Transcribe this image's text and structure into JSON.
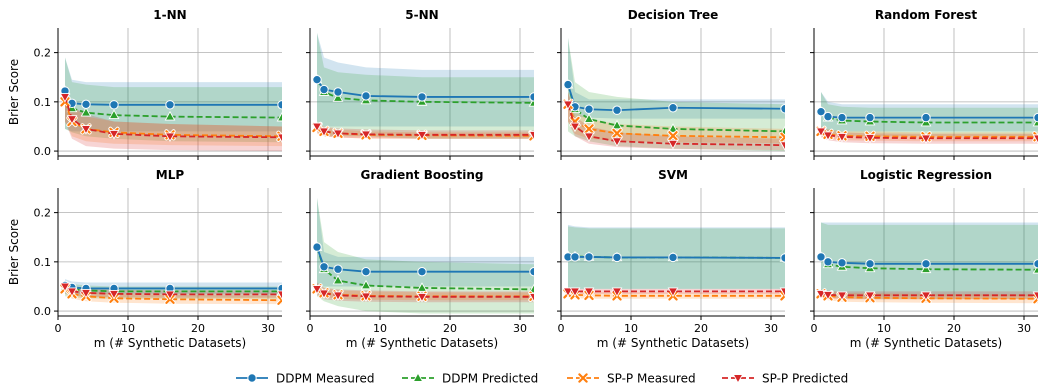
{
  "chart_data": [
    {
      "type": "line",
      "title": "1-NN",
      "ylabel": "Brier Score",
      "xlabel": "",
      "ylim": [
        -0.01,
        0.25
      ],
      "xlim": [
        0,
        32
      ],
      "x": [
        1,
        2,
        4,
        8,
        16,
        32
      ],
      "series": [
        {
          "name": "DDPM Measured",
          "values": [
            0.122,
            0.097,
            0.095,
            0.094,
            0.094,
            0.094
          ],
          "lower": [
            0.045,
            0.04,
            0.04,
            0.04,
            0.04,
            0.04
          ],
          "upper": [
            0.19,
            0.145,
            0.14,
            0.14,
            0.14,
            0.14
          ]
        },
        {
          "name": "DDPM Predicted",
          "values": [
            0.122,
            0.087,
            0.078,
            0.073,
            0.07,
            0.068
          ],
          "lower": [
            0.045,
            0.038,
            0.03,
            0.025,
            0.02,
            0.018
          ],
          "upper": [
            0.19,
            0.14,
            0.135,
            0.13,
            0.13,
            0.13
          ]
        },
        {
          "name": "SP-P Measured",
          "values": [
            0.1,
            0.06,
            0.045,
            0.038,
            0.033,
            0.03
          ],
          "lower": [
            0.06,
            0.03,
            0.02,
            0.015,
            0.012,
            0.01
          ],
          "upper": [
            0.13,
            0.09,
            0.07,
            0.06,
            0.055,
            0.05
          ]
        },
        {
          "name": "SP-P Predicted",
          "values": [
            0.11,
            0.065,
            0.045,
            0.035,
            0.03,
            0.028
          ],
          "lower": [
            0.06,
            0.025,
            0.01,
            0.005,
            0.002,
            0.0
          ],
          "upper": [
            0.13,
            0.09,
            0.075,
            0.06,
            0.055,
            0.05
          ]
        }
      ]
    },
    {
      "type": "line",
      "title": "5-NN",
      "ylabel": "",
      "xlabel": "",
      "ylim": [
        -0.01,
        0.25
      ],
      "xlim": [
        0,
        32
      ],
      "x": [
        1,
        2,
        4,
        8,
        16,
        32
      ],
      "series": [
        {
          "name": "DDPM Measured",
          "values": [
            0.145,
            0.125,
            0.12,
            0.112,
            0.11,
            0.11
          ],
          "lower": [
            0.06,
            0.05,
            0.05,
            0.05,
            0.05,
            0.05
          ],
          "upper": [
            0.24,
            0.19,
            0.18,
            0.17,
            0.165,
            0.165
          ]
        },
        {
          "name": "DDPM Predicted",
          "values": [
            0.145,
            0.12,
            0.108,
            0.103,
            0.1,
            0.098
          ],
          "lower": [
            0.04,
            0.03,
            0.03,
            0.03,
            0.025,
            0.025
          ],
          "upper": [
            0.24,
            0.17,
            0.16,
            0.155,
            0.15,
            0.15
          ]
        },
        {
          "name": "SP-P Measured",
          "values": [
            0.048,
            0.04,
            0.036,
            0.033,
            0.032,
            0.031
          ],
          "lower": [
            0.035,
            0.03,
            0.028,
            0.025,
            0.025,
            0.025
          ],
          "upper": [
            0.055,
            0.048,
            0.044,
            0.04,
            0.038,
            0.038
          ]
        },
        {
          "name": "SP-P Predicted",
          "values": [
            0.05,
            0.04,
            0.036,
            0.034,
            0.033,
            0.033
          ],
          "lower": [
            0.038,
            0.03,
            0.027,
            0.026,
            0.025,
            0.025
          ],
          "upper": [
            0.058,
            0.05,
            0.046,
            0.044,
            0.042,
            0.042
          ]
        }
      ]
    },
    {
      "type": "line",
      "title": "Decision Tree",
      "ylabel": "",
      "xlabel": "",
      "ylim": [
        -0.01,
        0.25
      ],
      "xlim": [
        0,
        32
      ],
      "x": [
        1,
        2,
        4,
        8,
        16,
        32
      ],
      "series": [
        {
          "name": "DDPM Measured",
          "values": [
            0.135,
            0.09,
            0.085,
            0.083,
            0.088,
            0.086
          ],
          "lower": [
            0.085,
            0.07,
            0.068,
            0.066,
            0.066,
            0.066
          ],
          "upper": [
            0.23,
            0.12,
            0.105,
            0.105,
            0.105,
            0.105
          ]
        },
        {
          "name": "DDPM Predicted",
          "values": [
            0.135,
            0.085,
            0.065,
            0.052,
            0.045,
            0.04
          ],
          "lower": [
            0.04,
            0.03,
            0.02,
            0.01,
            0.005,
            0.0
          ],
          "upper": [
            0.23,
            0.14,
            0.12,
            0.11,
            0.1,
            0.095
          ]
        },
        {
          "name": "SP-P Measured",
          "values": [
            0.095,
            0.06,
            0.045,
            0.036,
            0.031,
            0.028
          ],
          "lower": [
            0.06,
            0.035,
            0.025,
            0.02,
            0.018,
            0.016
          ],
          "upper": [
            0.12,
            0.08,
            0.065,
            0.055,
            0.05,
            0.045
          ]
        },
        {
          "name": "SP-P Predicted",
          "values": [
            0.095,
            0.05,
            0.03,
            0.02,
            0.015,
            0.012
          ],
          "lower": [
            0.06,
            0.03,
            0.015,
            0.008,
            0.004,
            0.002
          ],
          "upper": [
            0.12,
            0.07,
            0.05,
            0.038,
            0.03,
            0.025
          ]
        }
      ]
    },
    {
      "type": "line",
      "title": "Random Forest",
      "ylabel": "",
      "xlabel": "",
      "ylim": [
        -0.01,
        0.25
      ],
      "xlim": [
        0,
        32
      ],
      "x": [
        1,
        2,
        4,
        8,
        16,
        32
      ],
      "series": [
        {
          "name": "DDPM Measured",
          "values": [
            0.08,
            0.07,
            0.068,
            0.068,
            0.068,
            0.068
          ],
          "lower": [
            0.045,
            0.04,
            0.04,
            0.04,
            0.04,
            0.04
          ],
          "upper": [
            0.12,
            0.1,
            0.095,
            0.095,
            0.095,
            0.095
          ]
        },
        {
          "name": "DDPM Predicted",
          "values": [
            0.08,
            0.068,
            0.062,
            0.06,
            0.058,
            0.058
          ],
          "lower": [
            0.045,
            0.035,
            0.032,
            0.03,
            0.03,
            0.03
          ],
          "upper": [
            0.12,
            0.095,
            0.09,
            0.088,
            0.088,
            0.088
          ]
        },
        {
          "name": "SP-P Measured",
          "values": [
            0.04,
            0.034,
            0.031,
            0.03,
            0.029,
            0.029
          ],
          "lower": [
            0.03,
            0.025,
            0.022,
            0.021,
            0.02,
            0.02
          ],
          "upper": [
            0.05,
            0.045,
            0.04,
            0.04,
            0.038,
            0.038
          ]
        },
        {
          "name": "SP-P Predicted",
          "values": [
            0.04,
            0.032,
            0.029,
            0.027,
            0.026,
            0.026
          ],
          "lower": [
            0.028,
            0.022,
            0.018,
            0.016,
            0.015,
            0.015
          ],
          "upper": [
            0.05,
            0.042,
            0.038,
            0.036,
            0.035,
            0.035
          ]
        }
      ]
    },
    {
      "type": "line",
      "title": "MLP",
      "ylabel": "Brier Score",
      "xlabel": "m (# Synthetic Datasets)",
      "ylim": [
        -0.01,
        0.25
      ],
      "xlim": [
        0,
        32
      ],
      "x": [
        1,
        2,
        4,
        8,
        16,
        32
      ],
      "series": [
        {
          "name": "DDPM Measured",
          "values": [
            0.052,
            0.048,
            0.046,
            0.046,
            0.046,
            0.046
          ],
          "lower": [
            0.035,
            0.035,
            0.035,
            0.035,
            0.035,
            0.035
          ],
          "upper": [
            0.065,
            0.06,
            0.058,
            0.058,
            0.058,
            0.058
          ]
        },
        {
          "name": "DDPM Predicted",
          "values": [
            0.05,
            0.045,
            0.042,
            0.04,
            0.04,
            0.04
          ],
          "lower": [
            0.03,
            0.028,
            0.026,
            0.025,
            0.025,
            0.025
          ],
          "upper": [
            0.06,
            0.055,
            0.052,
            0.05,
            0.05,
            0.05
          ]
        },
        {
          "name": "SP-P Measured",
          "values": [
            0.045,
            0.035,
            0.03,
            0.026,
            0.024,
            0.022
          ],
          "lower": [
            0.035,
            0.025,
            0.02,
            0.017,
            0.015,
            0.014
          ],
          "upper": [
            0.055,
            0.045,
            0.04,
            0.035,
            0.033,
            0.031
          ]
        },
        {
          "name": "SP-P Predicted",
          "values": [
            0.05,
            0.04,
            0.037,
            0.035,
            0.034,
            0.034
          ],
          "lower": [
            0.04,
            0.032,
            0.029,
            0.028,
            0.027,
            0.027
          ],
          "upper": [
            0.06,
            0.048,
            0.045,
            0.043,
            0.042,
            0.042
          ]
        }
      ]
    },
    {
      "type": "line",
      "title": "Gradient Boosting",
      "ylabel": "",
      "xlabel": "m (# Synthetic Datasets)",
      "ylim": [
        -0.01,
        0.25
      ],
      "xlim": [
        0,
        32
      ],
      "x": [
        1,
        2,
        4,
        8,
        16,
        32
      ],
      "series": [
        {
          "name": "DDPM Measured",
          "values": [
            0.13,
            0.09,
            0.085,
            0.08,
            0.08,
            0.08
          ],
          "lower": [
            0.05,
            0.05,
            0.05,
            0.05,
            0.05,
            0.05
          ],
          "upper": [
            0.23,
            0.12,
            0.11,
            0.11,
            0.11,
            0.11
          ]
        },
        {
          "name": "DDPM Predicted",
          "values": [
            0.13,
            0.085,
            0.062,
            0.052,
            0.047,
            0.044
          ],
          "lower": [
            0.03,
            0.02,
            0.01,
            0.0,
            -0.005,
            -0.005
          ],
          "upper": [
            0.23,
            0.14,
            0.12,
            0.105,
            0.1,
            0.095
          ]
        },
        {
          "name": "SP-P Measured",
          "values": [
            0.045,
            0.037,
            0.033,
            0.031,
            0.03,
            0.03
          ],
          "lower": [
            0.035,
            0.028,
            0.025,
            0.023,
            0.022,
            0.022
          ],
          "upper": [
            0.055,
            0.046,
            0.042,
            0.04,
            0.038,
            0.038
          ]
        },
        {
          "name": "SP-P Predicted",
          "values": [
            0.045,
            0.036,
            0.032,
            0.03,
            0.029,
            0.029
          ],
          "lower": [
            0.032,
            0.024,
            0.021,
            0.019,
            0.018,
            0.018
          ],
          "upper": [
            0.058,
            0.048,
            0.044,
            0.042,
            0.04,
            0.04
          ]
        }
      ]
    },
    {
      "type": "line",
      "title": "SVM",
      "ylabel": "",
      "xlabel": "m (# Synthetic Datasets)",
      "ylim": [
        -0.01,
        0.25
      ],
      "xlim": [
        0,
        32
      ],
      "x": [
        1,
        2,
        4,
        8,
        16,
        32
      ],
      "series": [
        {
          "name": "DDPM Measured",
          "values": [
            0.11,
            0.11,
            0.11,
            0.109,
            0.109,
            0.108
          ],
          "lower": [
            0.045,
            0.045,
            0.045,
            0.045,
            0.045,
            0.045
          ],
          "upper": [
            0.175,
            0.172,
            0.17,
            0.17,
            0.17,
            0.17
          ]
        },
        {
          "name": "DDPM Predicted",
          "values": [
            0.112,
            0.111,
            0.11,
            0.109,
            0.109,
            0.108
          ],
          "lower": [
            0.045,
            0.045,
            0.045,
            0.045,
            0.045,
            0.045
          ],
          "upper": [
            0.172,
            0.17,
            0.168,
            0.168,
            0.168,
            0.168
          ]
        },
        {
          "name": "SP-P Measured",
          "values": [
            0.035,
            0.033,
            0.032,
            0.031,
            0.031,
            0.031
          ],
          "lower": [
            0.028,
            0.026,
            0.025,
            0.025,
            0.025,
            0.025
          ],
          "upper": [
            0.042,
            0.04,
            0.039,
            0.038,
            0.038,
            0.038
          ]
        },
        {
          "name": "SP-P Predicted",
          "values": [
            0.04,
            0.04,
            0.04,
            0.04,
            0.04,
            0.04
          ],
          "lower": [
            0.035,
            0.035,
            0.035,
            0.035,
            0.035,
            0.035
          ],
          "upper": [
            0.045,
            0.045,
            0.045,
            0.045,
            0.045,
            0.045
          ]
        }
      ]
    },
    {
      "type": "line",
      "title": "Logistic Regression",
      "ylabel": "",
      "xlabel": "m (# Synthetic Datasets)",
      "ylim": [
        -0.01,
        0.25
      ],
      "xlim": [
        0,
        32
      ],
      "x": [
        1,
        2,
        4,
        8,
        16,
        32
      ],
      "series": [
        {
          "name": "DDPM Measured",
          "values": [
            0.11,
            0.1,
            0.098,
            0.096,
            0.096,
            0.096
          ],
          "lower": [
            0.03,
            0.03,
            0.03,
            0.03,
            0.03,
            0.03
          ],
          "upper": [
            0.18,
            0.18,
            0.18,
            0.18,
            0.18,
            0.18
          ]
        },
        {
          "name": "DDPM Predicted",
          "values": [
            0.11,
            0.095,
            0.09,
            0.087,
            0.085,
            0.084
          ],
          "lower": [
            0.03,
            0.028,
            0.026,
            0.024,
            0.024,
            0.024
          ],
          "upper": [
            0.18,
            0.175,
            0.175,
            0.175,
            0.175,
            0.175
          ]
        },
        {
          "name": "SP-P Measured",
          "values": [
            0.035,
            0.031,
            0.028,
            0.027,
            0.026,
            0.025
          ],
          "lower": [
            0.026,
            0.022,
            0.019,
            0.018,
            0.017,
            0.016
          ],
          "upper": [
            0.044,
            0.04,
            0.037,
            0.036,
            0.035,
            0.034
          ]
        },
        {
          "name": "SP-P Predicted",
          "values": [
            0.035,
            0.033,
            0.032,
            0.032,
            0.032,
            0.032
          ],
          "lower": [
            0.027,
            0.025,
            0.024,
            0.024,
            0.024,
            0.024
          ],
          "upper": [
            0.043,
            0.041,
            0.04,
            0.04,
            0.04,
            0.04
          ]
        }
      ]
    }
  ],
  "legend": {
    "placement": "bottom-center",
    "items": [
      {
        "label": "DDPM Measured",
        "color": "#1f77b4",
        "marker": "circle",
        "dash": "solid"
      },
      {
        "label": "DDPM Predicted",
        "color": "#2ca02c",
        "marker": "triangle-up",
        "dash": "dashed"
      },
      {
        "label": "SP-P Measured",
        "color": "#ff7f0e",
        "marker": "x",
        "dash": "dashed"
      },
      {
        "label": "SP-P Predicted",
        "color": "#d62728",
        "marker": "triangle-down",
        "dash": "dashed"
      }
    ]
  },
  "yticks": [
    "0.0",
    "0.1",
    "0.2"
  ],
  "xticks": [
    "0",
    "10",
    "20",
    "30"
  ],
  "grid": true
}
